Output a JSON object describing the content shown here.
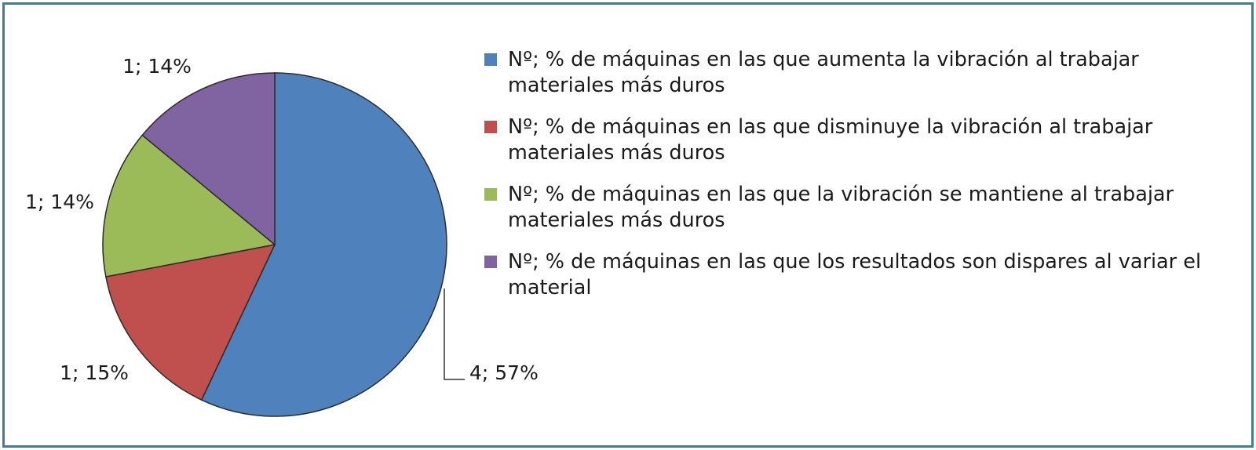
{
  "chart_data": {
    "type": "pie",
    "title": "",
    "slices": [
      {
        "label": "Nº; % de máquinas en las que aumenta la vibración al trabajar materiales más duros",
        "count": 4,
        "percent": 57,
        "data_label": "4; 57%",
        "color": "#4f81bd"
      },
      {
        "label": "Nº; % de máquinas en las que disminuye la vibración al trabajar materiales más duros",
        "count": 1,
        "percent": 15,
        "data_label": "1; 15%",
        "color": "#c0504d"
      },
      {
        "label": "Nº; % de máquinas en las que la vibración se mantiene al trabajar materiales más duros",
        "count": 1,
        "percent": 14,
        "data_label": "1; 14%",
        "color": "#9bbb59"
      },
      {
        "label": "Nº; % de máquinas en las que los resultados son dispares al variar el material",
        "count": 1,
        "percent": 14,
        "data_label": "1; 14%",
        "color": "#8064a2"
      }
    ],
    "legend_position": "right",
    "start_angle_deg": 0,
    "direction": "clockwise"
  },
  "frame": {
    "border_color": "#3f7f8f"
  }
}
